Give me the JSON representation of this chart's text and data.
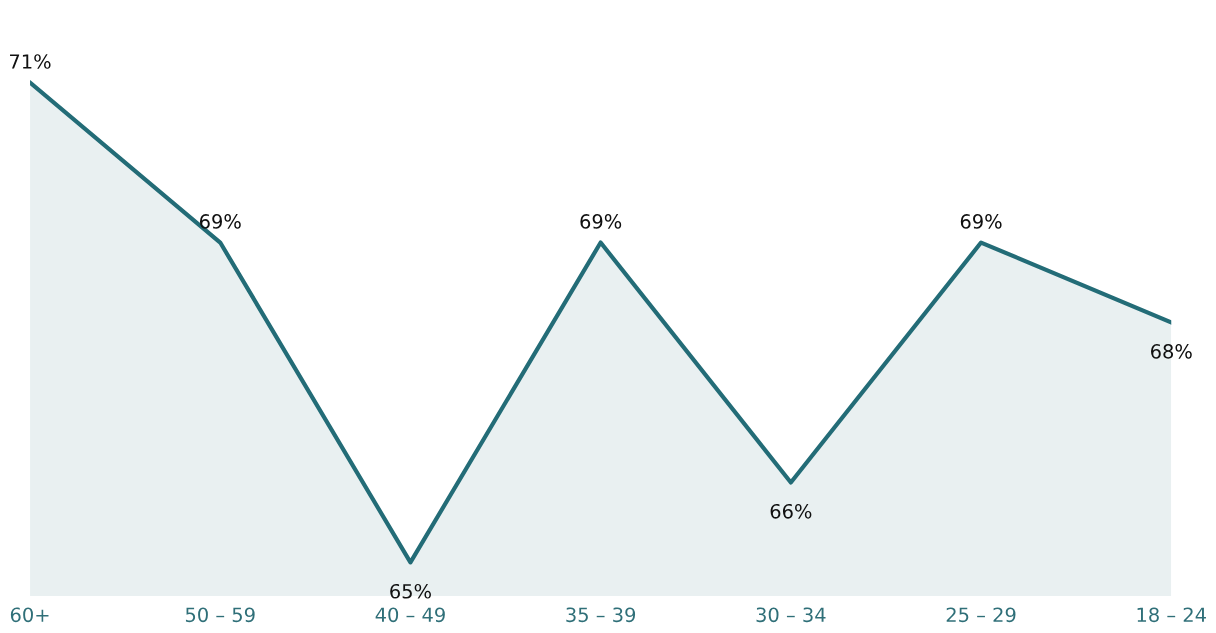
{
  "chart_data": {
    "type": "area",
    "categories": [
      "60+",
      "50 – 59",
      "40 – 49",
      "35 – 39",
      "30 – 34",
      "25 – 29",
      "18 – 24"
    ],
    "series": [
      {
        "color": "#236c77",
        "values": [
          71,
          69,
          65,
          69,
          66,
          69,
          68
        ],
        "value_labels": [
          "71%",
          "69%",
          "65%",
          "69%",
          "66%",
          "69%",
          "68%"
        ]
      }
    ],
    "legend": false,
    "grid": false,
    "tick_labels": "x"
  }
}
